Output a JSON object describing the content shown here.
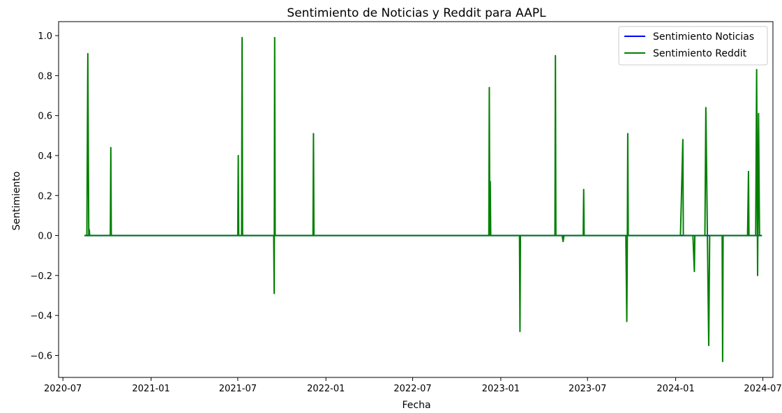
{
  "chart_data": {
    "type": "line",
    "title": "Sentimiento de Noticias y Reddit para AAPL",
    "xlabel": "Fecha",
    "ylabel": "Sentimiento",
    "x_ticks": [
      "2020-07",
      "2021-01",
      "2021-07",
      "2022-01",
      "2022-07",
      "2023-01",
      "2023-07",
      "2024-01",
      "2024-07"
    ],
    "y_ticks": [
      "−0.6",
      "−0.4",
      "−0.2",
      "0.0",
      "0.2",
      "0.4",
      "0.6",
      "0.8",
      "1.0"
    ],
    "xlim": [
      "2020-06-22",
      "2024-07-22"
    ],
    "ylim": [
      -0.71,
      1.07
    ],
    "legend_position": "top-right",
    "series": [
      {
        "name": "Sentimiento Noticias",
        "color": "#0000ff",
        "points": [
          [
            "2020-08-15",
            0.0
          ],
          [
            "2024-06-29",
            0.0
          ]
        ]
      },
      {
        "name": "Sentimiento Reddit",
        "color": "#008000",
        "points": [
          [
            "2020-08-15",
            0.0
          ],
          [
            "2020-08-20",
            0.0
          ],
          [
            "2020-08-22",
            0.91
          ],
          [
            "2020-08-24",
            0.0
          ],
          [
            "2020-08-25",
            0.03
          ],
          [
            "2020-08-26",
            0.0
          ],
          [
            "2020-10-08",
            0.0
          ],
          [
            "2020-10-09",
            0.44
          ],
          [
            "2020-10-10",
            0.0
          ],
          [
            "2021-07-01",
            0.0
          ],
          [
            "2021-07-02",
            0.4
          ],
          [
            "2021-07-03",
            0.0
          ],
          [
            "2021-07-09",
            0.0
          ],
          [
            "2021-07-10",
            0.99
          ],
          [
            "2021-07-11",
            0.0
          ],
          [
            "2021-09-14",
            0.0
          ],
          [
            "2021-09-15",
            -0.29
          ],
          [
            "2021-09-16",
            0.99
          ],
          [
            "2021-09-17",
            0.0
          ],
          [
            "2021-12-05",
            0.0
          ],
          [
            "2021-12-06",
            0.51
          ],
          [
            "2021-12-07",
            0.0
          ],
          [
            "2022-12-07",
            0.0
          ],
          [
            "2022-12-08",
            0.74
          ],
          [
            "2022-12-09",
            0.0
          ],
          [
            "2022-12-10",
            0.27
          ],
          [
            "2022-12-11",
            0.0
          ],
          [
            "2023-02-09",
            0.0
          ],
          [
            "2023-02-10",
            -0.48
          ],
          [
            "2023-02-11",
            0.0
          ],
          [
            "2023-04-24",
            0.0
          ],
          [
            "2023-04-25",
            0.9
          ],
          [
            "2023-04-26",
            0.0
          ],
          [
            "2023-05-09",
            0.0
          ],
          [
            "2023-05-11",
            -0.03
          ],
          [
            "2023-05-13",
            0.0
          ],
          [
            "2023-06-22",
            0.0
          ],
          [
            "2023-06-23",
            0.23
          ],
          [
            "2023-06-24",
            0.0
          ],
          [
            "2023-09-19",
            0.0
          ],
          [
            "2023-09-21",
            -0.43
          ],
          [
            "2023-09-22",
            -0.08
          ],
          [
            "2023-09-23",
            0.51
          ],
          [
            "2023-09-24",
            0.0
          ],
          [
            "2024-01-11",
            0.0
          ],
          [
            "2024-01-16",
            0.48
          ],
          [
            "2024-01-17",
            0.0
          ],
          [
            "2024-02-06",
            0.0
          ],
          [
            "2024-02-09",
            -0.18
          ],
          [
            "2024-02-10",
            0.0
          ],
          [
            "2024-03-02",
            0.0
          ],
          [
            "2024-03-04",
            0.64
          ],
          [
            "2024-03-10",
            -0.55
          ],
          [
            "2024-03-12",
            0.0
          ],
          [
            "2024-04-07",
            0.0
          ],
          [
            "2024-04-08",
            -0.63
          ],
          [
            "2024-04-09",
            0.0
          ],
          [
            "2024-05-30",
            0.0
          ],
          [
            "2024-06-01",
            0.32
          ],
          [
            "2024-06-02",
            0.0
          ],
          [
            "2024-06-16",
            0.0
          ],
          [
            "2024-06-18",
            0.83
          ],
          [
            "2024-06-20",
            -0.2
          ],
          [
            "2024-06-22",
            0.61
          ],
          [
            "2024-06-24",
            0.0
          ],
          [
            "2024-06-29",
            0.0
          ]
        ]
      }
    ]
  }
}
